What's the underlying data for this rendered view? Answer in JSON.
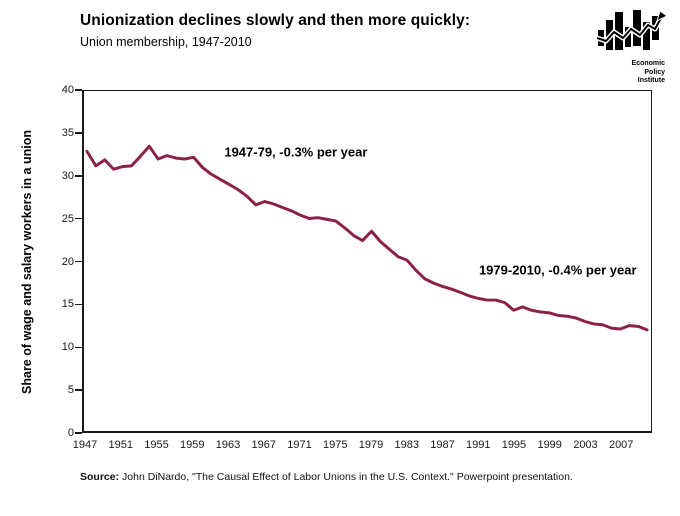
{
  "header": {
    "title": "Unionization declines slowly and then more quickly:",
    "subtitle": "Union membership, 1947-2010"
  },
  "logo": {
    "line1": "Economic",
    "line2": "Policy",
    "line3": "Institute"
  },
  "chart_data": {
    "type": "line",
    "title": "Unionization declines slowly and then more quickly: Union membership, 1947-2010",
    "xlabel": "",
    "ylabel": "Share of wage and salary workers in a union",
    "xlim": [
      1947,
      2010
    ],
    "ylim": [
      0,
      40
    ],
    "grid": false,
    "legend": "none",
    "line_color": "#8B2245",
    "frame_color": "#1a1a1a",
    "y_ticks": [
      0,
      5,
      10,
      15,
      20,
      25,
      30,
      35,
      40
    ],
    "x_ticks": [
      1947,
      1951,
      1955,
      1959,
      1963,
      1967,
      1971,
      1975,
      1979,
      1983,
      1987,
      1991,
      1995,
      1999,
      2003,
      2007
    ],
    "series": [
      {
        "name": "Union membership share",
        "x": [
          1947,
          1948,
          1949,
          1950,
          1951,
          1952,
          1953,
          1954,
          1955,
          1956,
          1957,
          1958,
          1959,
          1960,
          1961,
          1962,
          1963,
          1964,
          1965,
          1966,
          1967,
          1968,
          1969,
          1970,
          1971,
          1972,
          1973,
          1974,
          1975,
          1976,
          1977,
          1978,
          1979,
          1980,
          1981,
          1982,
          1983,
          1984,
          1985,
          1986,
          1987,
          1988,
          1989,
          1990,
          1991,
          1992,
          1993,
          1994,
          1995,
          1996,
          1997,
          1998,
          1999,
          2000,
          2001,
          2002,
          2003,
          2004,
          2005,
          2006,
          2007,
          2008,
          2009,
          2010
        ],
        "values": [
          32.9,
          31.2,
          31.9,
          30.8,
          31.1,
          31.2,
          32.3,
          33.5,
          32.0,
          32.4,
          32.1,
          32.0,
          32.2,
          31.0,
          30.2,
          29.6,
          29.0,
          28.4,
          27.6,
          26.6,
          27.0,
          26.7,
          26.3,
          25.9,
          25.4,
          25.0,
          25.1,
          24.9,
          24.7,
          23.9,
          23.0,
          22.4,
          23.5,
          22.3,
          21.4,
          20.5,
          20.1,
          18.9,
          17.9,
          17.4,
          17.0,
          16.7,
          16.3,
          15.9,
          15.6,
          15.4,
          15.4,
          15.1,
          14.2,
          14.6,
          14.2,
          14.0,
          13.9,
          13.6,
          13.5,
          13.3,
          12.9,
          12.6,
          12.5,
          12.1,
          12.0,
          12.4,
          12.3,
          11.9
        ]
      }
    ],
    "annotations": [
      {
        "text": "1947-79, -0.3% per year",
        "year": 1970.6,
        "value": 32.8
      },
      {
        "text": "1979-2010, -0.4% per year",
        "year": 1999.9,
        "value": 19.0
      }
    ]
  },
  "footer": {
    "source_label": "Source:",
    "source_text": " John DiNardo, \"The Causal Effect of Labor Unions in the U.S. Context.\" Powerpoint presentation."
  }
}
